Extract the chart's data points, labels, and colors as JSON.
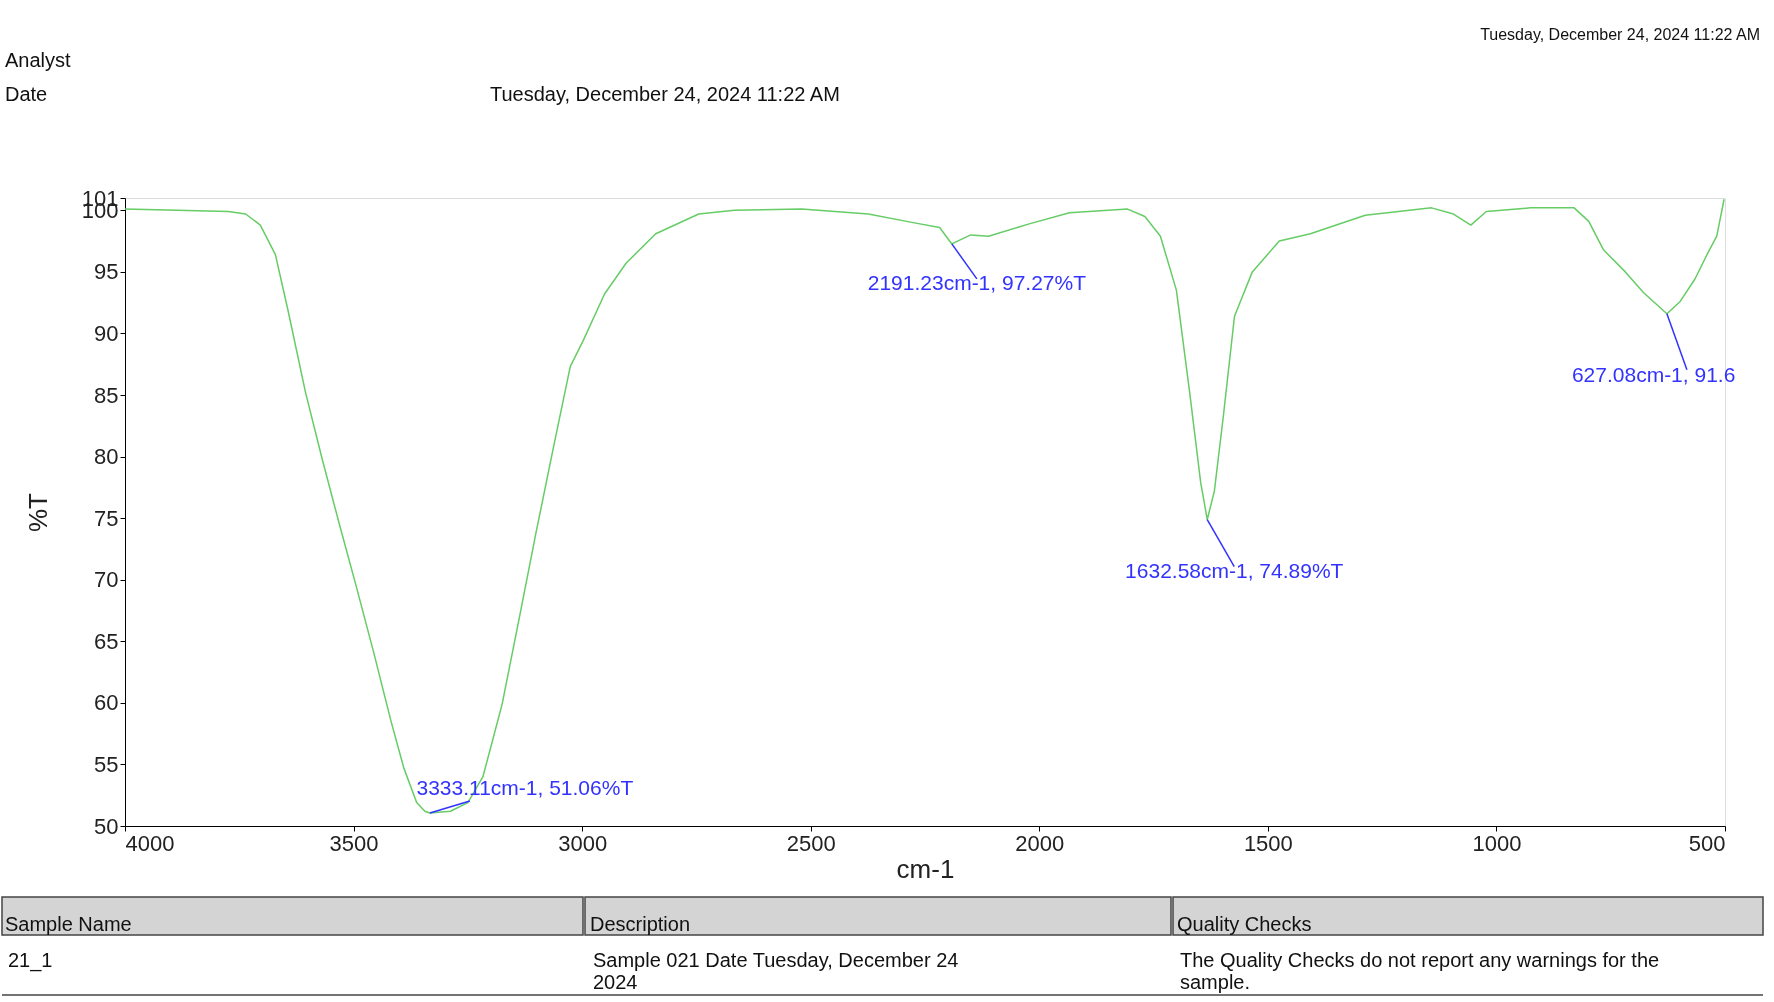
{
  "chart_data": {
    "type": "line",
    "xlabel": "cm-1",
    "ylabel": "%T",
    "xlim": [
      4000,
      500
    ],
    "xticks": [
      4000,
      3500,
      3000,
      2500,
      2000,
      1500,
      1000,
      500
    ],
    "ylim": [
      50,
      101
    ],
    "yticks": [
      50,
      55,
      60,
      65,
      70,
      75,
      80,
      85,
      90,
      95,
      100,
      101
    ],
    "grid": false,
    "series": [
      {
        "color": "#66cc66",
        "x": [
          4000,
          3774,
          3736,
          3704,
          3671,
          3643,
          3605,
          3568,
          3531,
          3493,
          3456,
          3418,
          3390,
          3362,
          3344,
          3333.11,
          3288,
          3250,
          3217,
          3175,
          3138,
          3101,
          3063,
          3026,
          2998,
          2951,
          2904,
          2839,
          2745,
          2667,
          2520,
          2374,
          2276,
          2218,
          2191.23,
          2150,
          2111,
          2022,
          1934,
          1807,
          1769,
          1735,
          1700,
          1671,
          1647,
          1632.58,
          1617,
          1597,
          1573,
          1534,
          1475,
          1407,
          1287,
          1142,
          1094,
          1056,
          1022,
          926,
          830,
          798,
          766,
          718,
          678,
          627.08,
          598,
          566,
          538,
          518,
          510,
          502
        ],
        "values": [
          100.1,
          99.9,
          99.7,
          98.8,
          96.4,
          91.8,
          85.2,
          79.7,
          74.5,
          69.3,
          64.1,
          58.5,
          54.7,
          51.9,
          51.2,
          51.06,
          51.2,
          51.9,
          54.0,
          59.9,
          66.8,
          73.8,
          80.7,
          87.3,
          89.4,
          93.2,
          95.7,
          98.1,
          99.7,
          100.0,
          100.1,
          99.7,
          99.0,
          98.6,
          97.27,
          98.0,
          97.9,
          98.9,
          99.8,
          100.1,
          99.5,
          97.9,
          93.5,
          85.2,
          77.9,
          74.89,
          77.2,
          83.4,
          91.4,
          95.0,
          97.5,
          98.1,
          99.6,
          100.2,
          99.7,
          98.8,
          99.9,
          100.2,
          100.2,
          99.1,
          96.8,
          95.0,
          93.3,
          91.6,
          92.6,
          94.4,
          96.5,
          97.9,
          99.4,
          100.9
        ]
      }
    ],
    "annotations": [
      "Analyst",
      "Date",
      "Tuesday, December 24, 2024 11:22 AM",
      "Tuesday, December 24, 2024 11:22 AM",
      "Sample Name",
      "Description",
      "Quality Checks",
      "21_1",
      "Sample 021 Date Tuesday, December 24\n2024",
      "The Quality Checks do not report any warnings for the\nsample.",
      {
        "text": "3333.11cm-1, 51.06%T",
        "x": 3333.11,
        "y": 51.06
      },
      {
        "text": "2191.23cm-1, 97.27%T",
        "x": 2191.23,
        "y": 97.27
      },
      {
        "text": "1632.58cm-1, 74.89%T",
        "x": 1632.58,
        "y": 74.89
      },
      {
        "text": "627.08cm-1, 91.6",
        "x": 627.08,
        "y": 91.6
      }
    ]
  }
}
